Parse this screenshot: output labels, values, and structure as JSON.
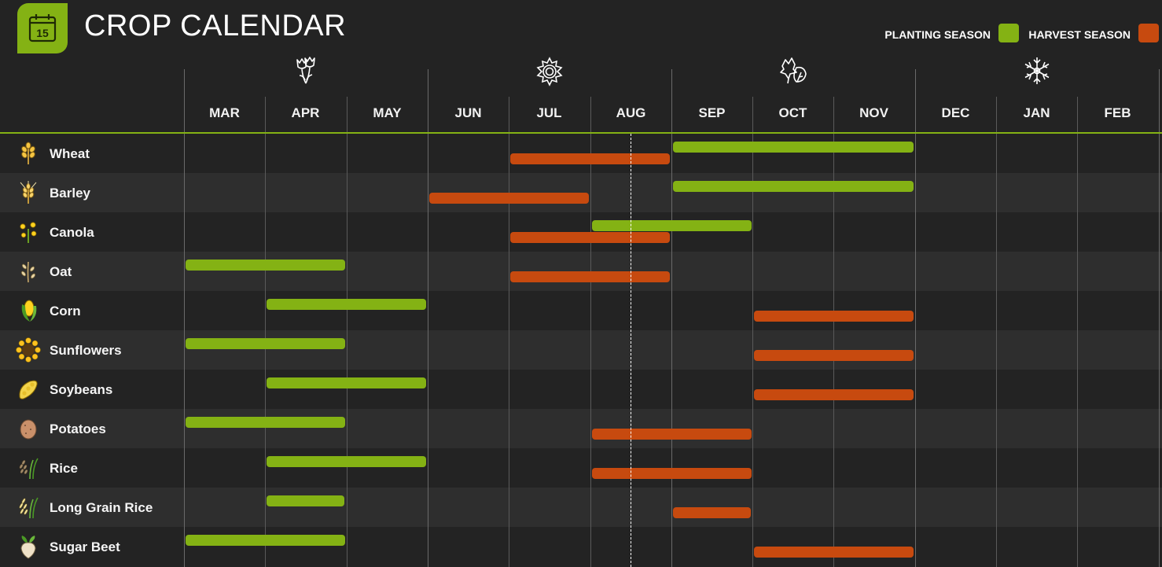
{
  "header": {
    "title": "CROP CALENDAR",
    "calendar_badge_day": "15",
    "badge_color": "#84b214"
  },
  "legend": {
    "planting_label": "PLANTING SEASON",
    "harvest_label": "HARVEST SEASON",
    "planting_color": "#84b214",
    "harvest_color": "#c74a0f"
  },
  "months": [
    "MAR",
    "APR",
    "MAY",
    "JUN",
    "JUL",
    "AUG",
    "SEP",
    "OCT",
    "NOV",
    "DEC",
    "JAN",
    "FEB"
  ],
  "seasons": [
    {
      "name": "spring",
      "icon": "tulip-icon",
      "start_month": "MAR"
    },
    {
      "name": "summer",
      "icon": "sun-icon",
      "start_month": "JUN"
    },
    {
      "name": "autumn",
      "icon": "leaves-icon",
      "start_month": "SEP"
    },
    {
      "name": "winter",
      "icon": "snowflake-icon",
      "start_month": "DEC"
    }
  ],
  "today_marker_month_position": 5.5,
  "crops": [
    {
      "name": "Wheat",
      "icon": "wheat-icon",
      "planting": [
        6,
        8
      ],
      "harvest": [
        4,
        5
      ]
    },
    {
      "name": "Barley",
      "icon": "barley-icon",
      "planting": [
        6,
        8
      ],
      "harvest": [
        3,
        4
      ]
    },
    {
      "name": "Canola",
      "icon": "canola-icon",
      "planting": [
        5,
        6
      ],
      "harvest": [
        4,
        5
      ]
    },
    {
      "name": "Oat",
      "icon": "oat-icon",
      "planting": [
        0,
        1
      ],
      "harvest": [
        4,
        5
      ]
    },
    {
      "name": "Corn",
      "icon": "corn-icon",
      "planting": [
        1,
        2
      ],
      "harvest": [
        7,
        8
      ]
    },
    {
      "name": "Sunflowers",
      "icon": "sunflower-icon",
      "planting": [
        0,
        1
      ],
      "harvest": [
        7,
        8
      ]
    },
    {
      "name": "Soybeans",
      "icon": "soybean-icon",
      "planting": [
        1,
        2
      ],
      "harvest": [
        7,
        8
      ]
    },
    {
      "name": "Potatoes",
      "icon": "potato-icon",
      "planting": [
        0,
        1
      ],
      "harvest": [
        5,
        6
      ]
    },
    {
      "name": "Rice",
      "icon": "rice-icon",
      "planting": [
        1,
        2
      ],
      "harvest": [
        5,
        6
      ]
    },
    {
      "name": "Long Grain Rice",
      "icon": "long-grain-rice-icon",
      "planting": [
        1,
        1
      ],
      "harvest": [
        6,
        6
      ]
    },
    {
      "name": "Sugar Beet",
      "icon": "sugar-beet-icon",
      "planting": [
        0,
        1
      ],
      "harvest": [
        7,
        8
      ]
    }
  ]
}
